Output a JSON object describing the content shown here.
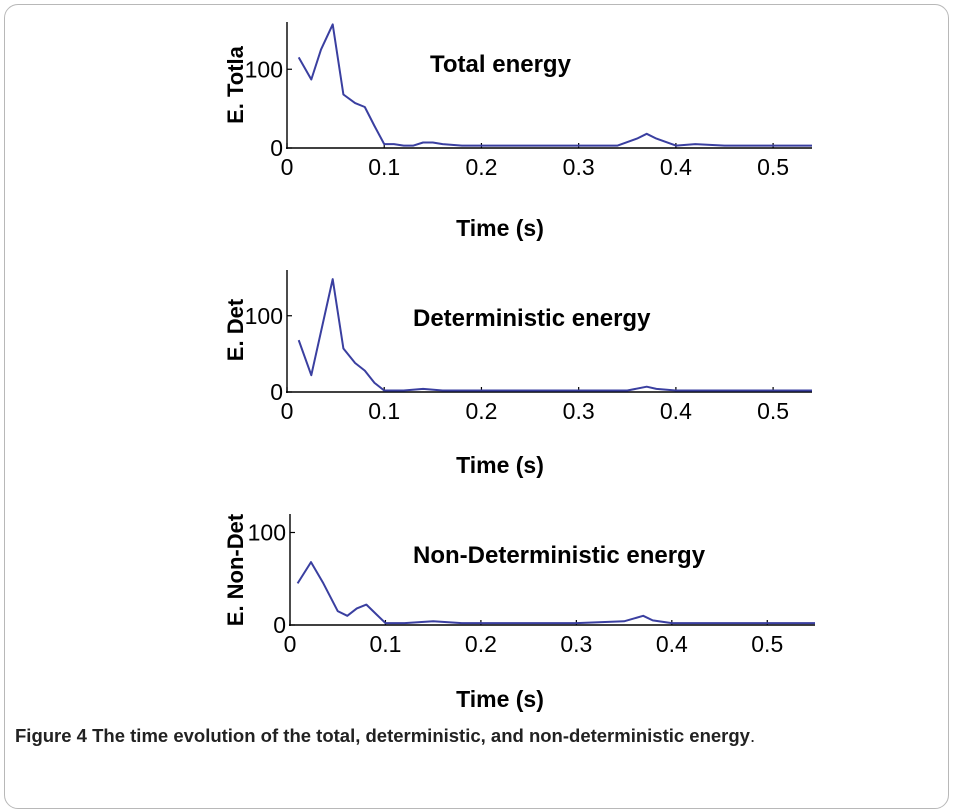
{
  "caption": {
    "label": "Figure 4",
    "text": "The time evolution of the total, deterministic, and non-deterministic energy",
    "trailing": "."
  },
  "chart_data": [
    {
      "type": "line",
      "title": "Total energy",
      "xlabel": "Time (s)",
      "ylabel": "E. Totla",
      "xlim": [
        0,
        0.54
      ],
      "ylim": [
        0,
        160
      ],
      "xticks": [
        "0",
        "0.1",
        "0.2",
        "0.3",
        "0.4",
        "0.5"
      ],
      "xtick_values": [
        0,
        0.1,
        0.2,
        0.3,
        0.4,
        0.5
      ],
      "yticks": [
        "0",
        "100"
      ],
      "ytick_values": [
        0,
        100
      ],
      "grid": false,
      "line_color": "#3a3fa0",
      "x": [
        0.012,
        0.025,
        0.035,
        0.047,
        0.058,
        0.07,
        0.08,
        0.09,
        0.1,
        0.11,
        0.12,
        0.13,
        0.14,
        0.15,
        0.16,
        0.18,
        0.2,
        0.25,
        0.3,
        0.34,
        0.36,
        0.37,
        0.38,
        0.4,
        0.42,
        0.45,
        0.5,
        0.54
      ],
      "y": [
        115,
        87,
        125,
        157,
        68,
        57,
        52,
        28,
        5,
        5,
        3,
        3,
        7,
        7,
        5,
        3,
        3,
        3,
        3,
        3,
        12,
        18,
        12,
        3,
        5,
        3,
        3,
        3
      ]
    },
    {
      "type": "line",
      "title": "Deterministic energy",
      "xlabel": "Time (s)",
      "ylabel": "E. Det",
      "xlim": [
        0,
        0.54
      ],
      "ylim": [
        0,
        160
      ],
      "xticks": [
        "0",
        "0.1",
        "0.2",
        "0.3",
        "0.4",
        "0.5"
      ],
      "xtick_values": [
        0,
        0.1,
        0.2,
        0.3,
        0.4,
        0.5
      ],
      "yticks": [
        "0",
        "100"
      ],
      "ytick_values": [
        0,
        100
      ],
      "grid": false,
      "line_color": "#3a3fa0",
      "x": [
        0.012,
        0.025,
        0.047,
        0.058,
        0.07,
        0.08,
        0.09,
        0.1,
        0.12,
        0.14,
        0.16,
        0.2,
        0.3,
        0.35,
        0.37,
        0.38,
        0.4,
        0.45,
        0.54
      ],
      "y": [
        68,
        22,
        148,
        57,
        38,
        28,
        12,
        2,
        2,
        4,
        2,
        2,
        2,
        2,
        7,
        4,
        2,
        2,
        2
      ]
    },
    {
      "type": "line",
      "title": "Non-Deterministic energy",
      "xlabel": "Time (s)",
      "ylabel": "E. Non-Det",
      "xlim": [
        0,
        0.55
      ],
      "ylim": [
        0,
        120
      ],
      "xticks": [
        "0",
        "0.1",
        "0.2",
        "0.3",
        "0.4",
        "0.5"
      ],
      "xtick_values": [
        0,
        0.1,
        0.2,
        0.3,
        0.4,
        0.5
      ],
      "yticks": [
        "0",
        "100"
      ],
      "ytick_values": [
        0,
        100
      ],
      "grid": false,
      "line_color": "#3a3fa0",
      "x": [
        0.008,
        0.022,
        0.035,
        0.05,
        0.06,
        0.07,
        0.08,
        0.09,
        0.1,
        0.12,
        0.15,
        0.18,
        0.2,
        0.3,
        0.35,
        0.37,
        0.38,
        0.4,
        0.45,
        0.55
      ],
      "y": [
        45,
        68,
        45,
        15,
        10,
        18,
        22,
        12,
        2,
        2,
        4,
        2,
        2,
        2,
        4,
        10,
        5,
        2,
        2,
        2
      ]
    }
  ]
}
